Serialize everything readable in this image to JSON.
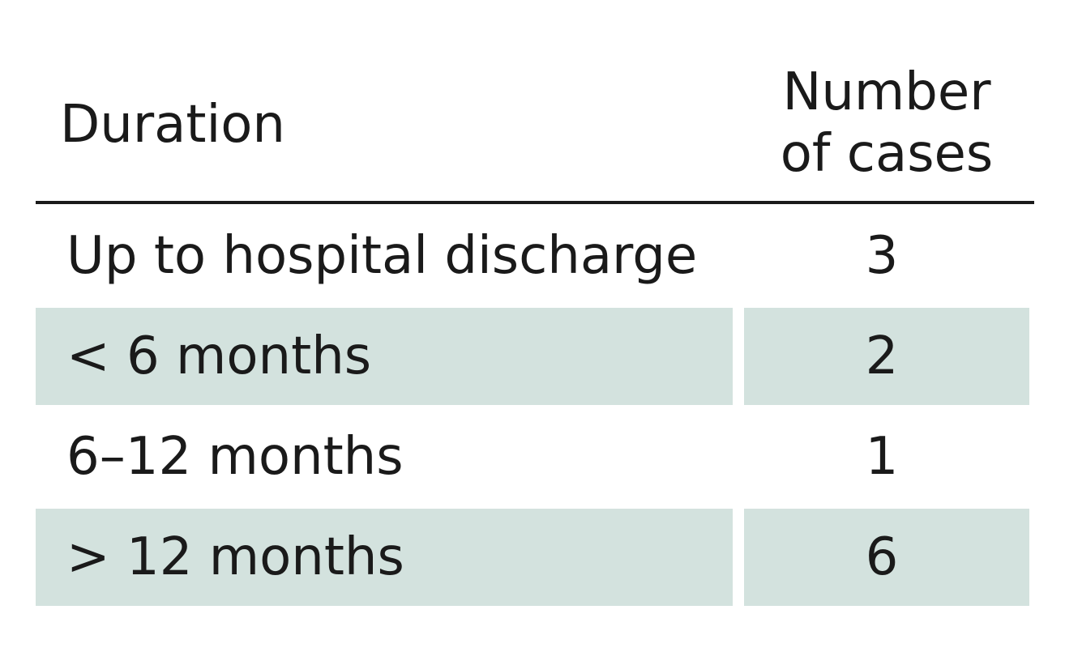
{
  "table": {
    "columns": [
      "Duration",
      "Number of cases"
    ],
    "header_number_lines": [
      "Number",
      "of cases"
    ],
    "rows": [
      {
        "duration": "Up to hospital discharge",
        "cases": "3"
      },
      {
        "duration": "< 6 months",
        "cases": "2"
      },
      {
        "duration": "6–12 months",
        "cases": "1"
      },
      {
        "duration": "> 12 months",
        "cases": "6"
      }
    ],
    "shade_color": "#d3e2de"
  }
}
